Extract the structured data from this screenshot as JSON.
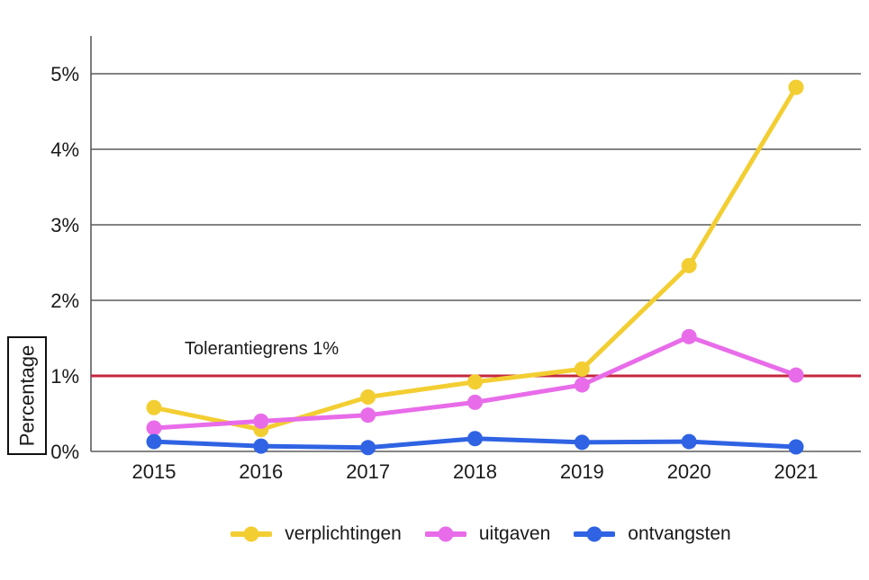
{
  "chart_data": {
    "type": "line",
    "title": "",
    "xlabel": "",
    "ylabel": "Percentage",
    "x": [
      "2015",
      "2016",
      "2017",
      "2018",
      "2019",
      "2020",
      "2021"
    ],
    "series": [
      {
        "name": "verplichtingen",
        "color": "#F3CE32",
        "values": [
          0.58,
          0.29,
          0.72,
          0.92,
          1.09,
          2.46,
          4.82
        ]
      },
      {
        "name": "uitgaven",
        "color": "#E86CE9",
        "values": [
          0.31,
          0.4,
          0.48,
          0.65,
          0.88,
          1.52,
          1.01
        ]
      },
      {
        "name": "ontvangsten",
        "color": "#2F63E3",
        "values": [
          0.13,
          0.07,
          0.05,
          0.17,
          0.12,
          0.13,
          0.06
        ]
      }
    ],
    "ylim": [
      0,
      5.5
    ],
    "yticks": [
      {
        "value": 0,
        "label": "0%"
      },
      {
        "value": 1,
        "label": "1%"
      },
      {
        "value": 2,
        "label": "2%"
      },
      {
        "value": 3,
        "label": "3%"
      },
      {
        "value": 4,
        "label": "4%"
      },
      {
        "value": 5,
        "label": "5%"
      }
    ],
    "grid": true,
    "legend_position": "bottom",
    "annotation": {
      "type": "hline",
      "value": 1,
      "label": "Tolerantiegrens 1%",
      "color": "#C5283D"
    }
  },
  "colors": {
    "grid": "#5C5C5C",
    "text": "#1A1A1A",
    "background": "#FFFFFF"
  }
}
